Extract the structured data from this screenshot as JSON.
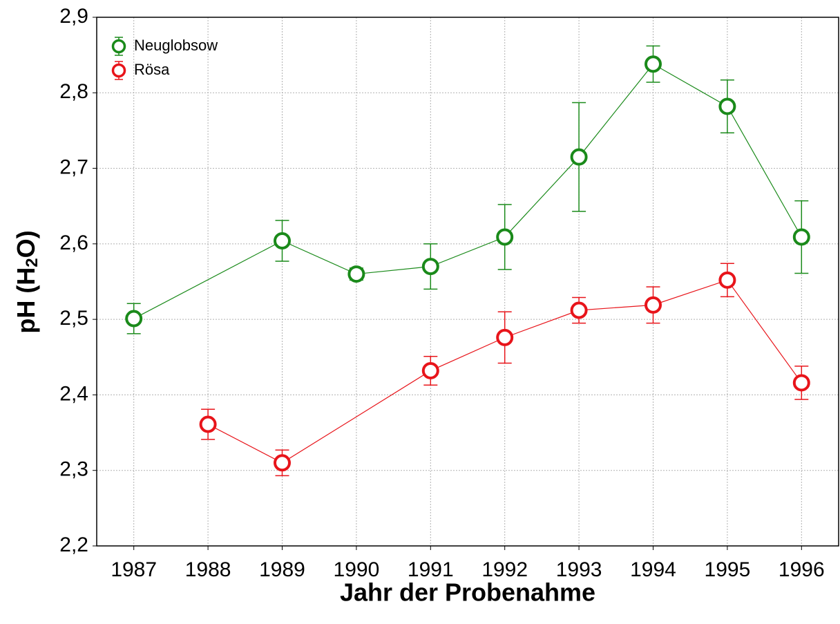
{
  "chart_data": {
    "type": "line",
    "x_label": "Jahr der Probenahme",
    "y_label": [
      "pH (H",
      "2",
      "O)"
    ],
    "xlim": [
      1986.5,
      1996.5
    ],
    "xticks": [
      1987,
      1988,
      1989,
      1990,
      1991,
      1992,
      1993,
      1994,
      1995,
      1996
    ],
    "ylim": [
      2.2,
      2.9
    ],
    "yticks": [
      {
        "value": 2.2,
        "label": "2,2"
      },
      {
        "value": 2.3,
        "label": "2,3"
      },
      {
        "value": 2.4,
        "label": "2,4"
      },
      {
        "value": 2.5,
        "label": "2,5"
      },
      {
        "value": 2.6,
        "label": "2,6"
      },
      {
        "value": 2.7,
        "label": "2,7"
      },
      {
        "value": 2.8,
        "label": "2,8"
      },
      {
        "value": 2.9,
        "label": "2,9"
      }
    ],
    "grid": true,
    "legend": "top-left",
    "series": [
      {
        "name": "Neuglobsow",
        "color": "#1a8a1a",
        "x": [
          1987,
          1989,
          1990,
          1991,
          1992,
          1993,
          1994,
          1995,
          1996
        ],
        "values": [
          2.501,
          2.604,
          2.56,
          2.57,
          2.609,
          2.715,
          2.838,
          2.782,
          2.609
        ],
        "errors": [
          0.02,
          0.027,
          0.008,
          0.03,
          0.043,
          0.072,
          0.024,
          0.035,
          0.048
        ]
      },
      {
        "name": "Rösa",
        "color": "#e8141a",
        "x": [
          1988,
          1989,
          1991,
          1992,
          1993,
          1994,
          1995,
          1996
        ],
        "values": [
          2.361,
          2.31,
          2.432,
          2.476,
          2.512,
          2.519,
          2.552,
          2.416
        ],
        "errors": [
          0.02,
          0.017,
          0.019,
          0.034,
          0.017,
          0.024,
          0.022,
          0.022
        ]
      }
    ]
  }
}
